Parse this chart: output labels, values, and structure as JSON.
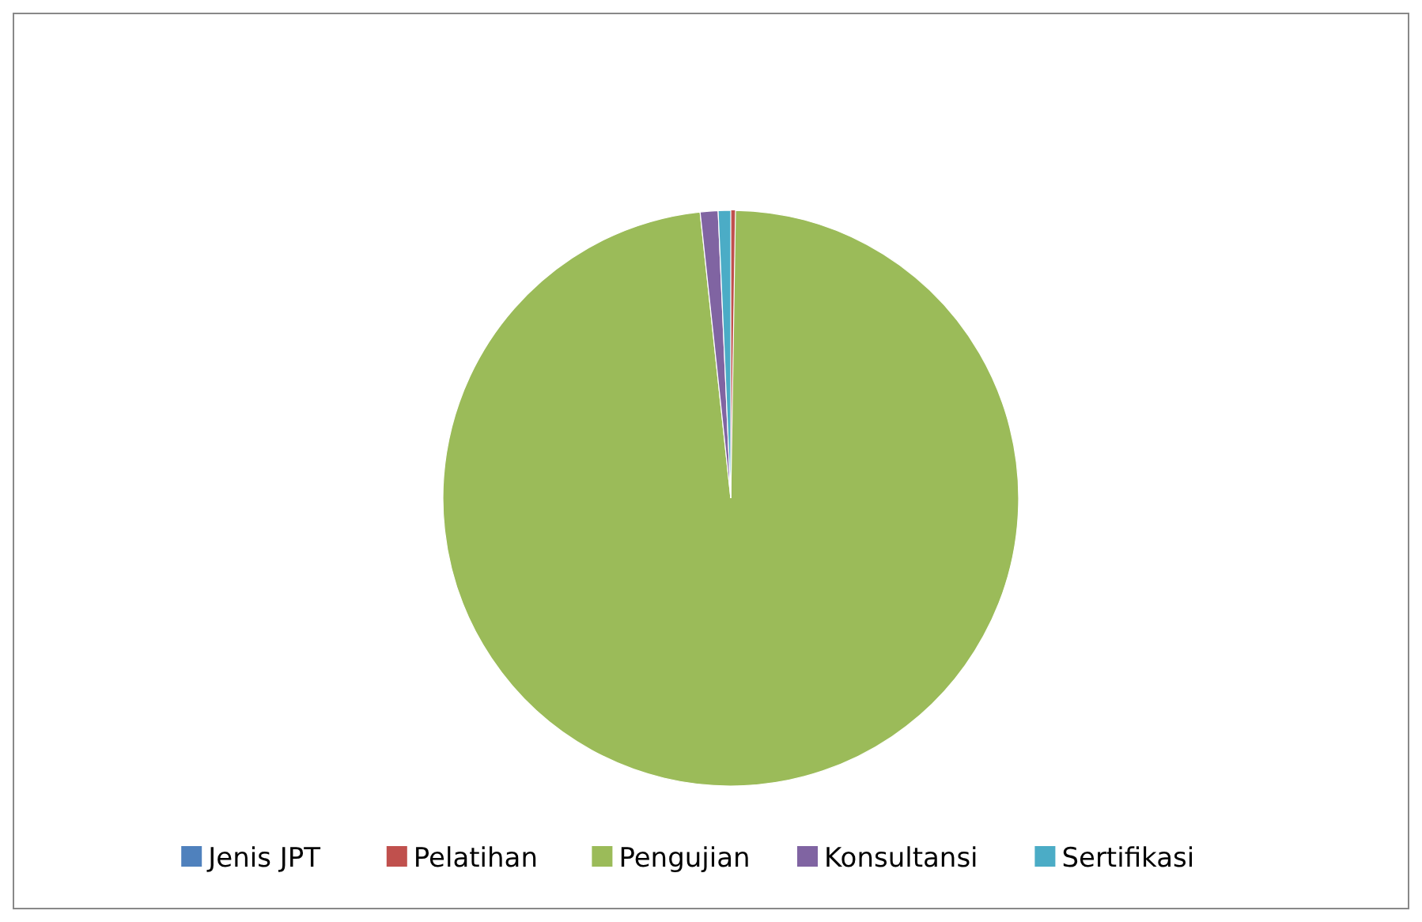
{
  "chart_data": {
    "type": "pie",
    "categories": [
      "Jenis JPT",
      "Pelatihan",
      "Pengujian",
      "Konsultansi",
      "Sertifikasi"
    ],
    "values": [
      0,
      0.26,
      98.04,
      1,
      0.7
    ],
    "colors": [
      "#4f81bd",
      "#c0504d",
      "#9bbb59",
      "#8064a2",
      "#4bacc6"
    ],
    "legend": "bottom"
  }
}
